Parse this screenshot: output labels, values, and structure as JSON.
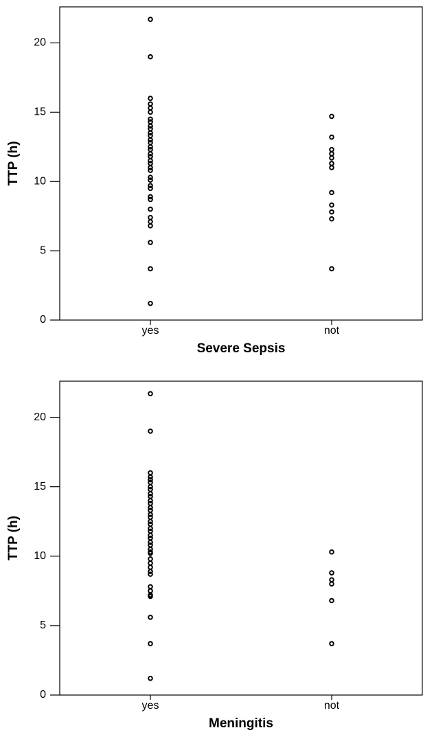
{
  "chart_data": [
    {
      "type": "strip",
      "ylabel": "TTP (h)",
      "xlabel": "Severe Sepsis",
      "categories": [
        "yes",
        "not"
      ],
      "values": [
        [
          21.7,
          19.0,
          16.0,
          15.6,
          15.3,
          15.0,
          14.5,
          14.3,
          14.0,
          13.8,
          13.5,
          13.3,
          13.0,
          12.8,
          12.5,
          12.3,
          12.0,
          11.8,
          11.5,
          11.3,
          11.0,
          10.8,
          10.3,
          10.1,
          9.7,
          9.5,
          8.9,
          8.7,
          8.0,
          7.4,
          7.1,
          6.8,
          5.6,
          3.7,
          1.2
        ],
        [
          14.7,
          13.2,
          12.3,
          12.0,
          11.7,
          11.3,
          11.0,
          9.2,
          8.3,
          7.8,
          7.3,
          3.7
        ]
      ],
      "color": "#000000",
      "ylim": [
        0,
        22.6
      ],
      "yticks": [
        0,
        5,
        10,
        15,
        20
      ]
    },
    {
      "type": "strip",
      "ylabel": "TTP (h)",
      "xlabel": "Meningitis",
      "categories": [
        "yes",
        "not"
      ],
      "values": [
        [
          21.7,
          19.0,
          16.0,
          15.7,
          15.5,
          15.3,
          15.0,
          14.8,
          14.5,
          14.3,
          14.0,
          13.8,
          13.5,
          13.3,
          13.0,
          12.8,
          12.5,
          12.3,
          12.0,
          11.8,
          11.5,
          11.3,
          11.0,
          10.8,
          10.5,
          10.3,
          10.2,
          9.8,
          9.5,
          9.2,
          8.9,
          8.7,
          7.8,
          7.5,
          7.2,
          7.1,
          5.6,
          3.7,
          1.2
        ],
        [
          10.3,
          8.8,
          8.3,
          8.0,
          6.8,
          3.7
        ]
      ],
      "color": "#000000",
      "ylim": [
        0,
        22.6
      ],
      "yticks": [
        0,
        5,
        10,
        15,
        20
      ]
    }
  ]
}
